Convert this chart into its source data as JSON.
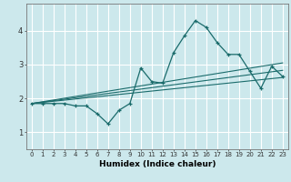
{
  "xlabel": "Humidex (Indice chaleur)",
  "background_color": "#cce8ec",
  "grid_color": "#ffffff",
  "line_color": "#1a6b6b",
  "xlim": [
    -0.5,
    23.5
  ],
  "ylim": [
    0.5,
    4.8
  ],
  "xticks": [
    0,
    1,
    2,
    3,
    4,
    5,
    6,
    7,
    8,
    9,
    10,
    11,
    12,
    13,
    14,
    15,
    16,
    17,
    18,
    19,
    20,
    21,
    22,
    23
  ],
  "yticks": [
    1,
    2,
    3,
    4
  ],
  "series1_x": [
    0,
    1,
    2,
    3,
    4,
    5,
    6,
    7,
    8,
    9,
    10,
    11,
    12,
    13,
    14,
    15,
    16,
    17,
    18,
    19,
    20,
    21,
    22,
    23
  ],
  "series1_y": [
    1.85,
    1.85,
    1.85,
    1.85,
    1.78,
    1.78,
    1.55,
    1.25,
    1.65,
    1.85,
    2.9,
    2.5,
    2.45,
    3.35,
    3.85,
    4.3,
    4.1,
    3.65,
    3.3,
    3.3,
    2.8,
    2.3,
    2.95,
    2.65
  ],
  "series2_x": [
    0,
    23
  ],
  "series2_y": [
    1.85,
    2.62
  ],
  "series3_x": [
    0,
    23
  ],
  "series3_y": [
    1.85,
    3.05
  ],
  "series4_x": [
    0,
    23
  ],
  "series4_y": [
    1.85,
    2.83
  ]
}
